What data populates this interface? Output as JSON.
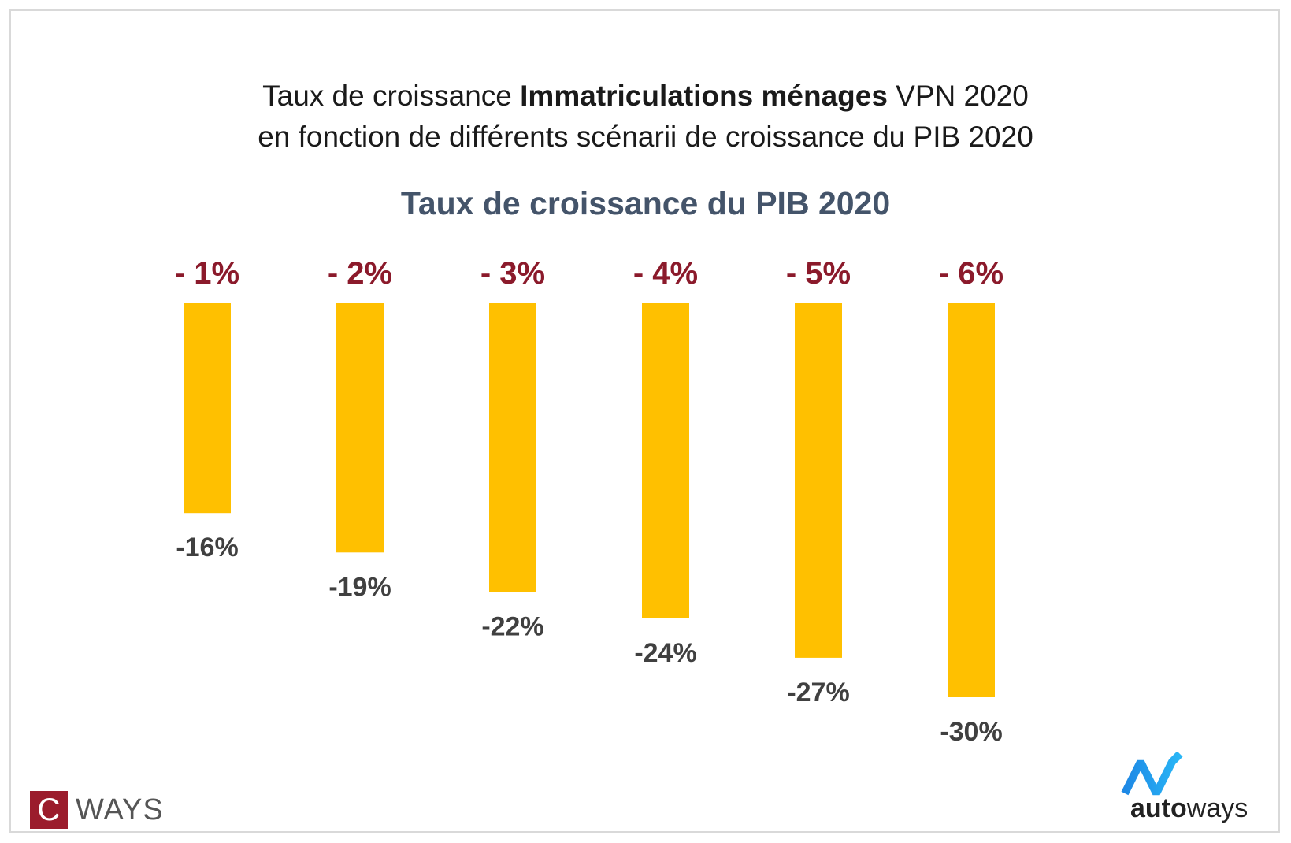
{
  "title": {
    "line1_pre": "Taux de croissance ",
    "line1_bold": "Immatriculations ménages",
    "line1_post": " VPN 2020",
    "line2": "en fonction de différents scénarii de croissance du PIB 2020"
  },
  "chart_data": {
    "type": "bar",
    "title": "Taux de croissance du PIB 2020",
    "categories": [
      "- 1%",
      "- 2%",
      "- 3%",
      "- 4%",
      "- 5%",
      "- 6%"
    ],
    "series": [
      {
        "values": [
          -16,
          -19,
          -22,
          -24,
          -27,
          -30
        ]
      }
    ],
    "data_labels": [
      "-16%",
      "-19%",
      "-22%",
      "-24%",
      "-27%",
      "-30%"
    ],
    "ylim": [
      -30,
      0
    ],
    "grid": false,
    "xlabel": "",
    "ylabel": "",
    "colors": {
      "bar": "#ffc000",
      "category": "#8b1a2b",
      "data_label": "#404040"
    }
  },
  "logos": {
    "cways_letter": "C",
    "cways_text": "WAYS",
    "autoways_bold": "auto",
    "autoways_rest": "ways"
  }
}
